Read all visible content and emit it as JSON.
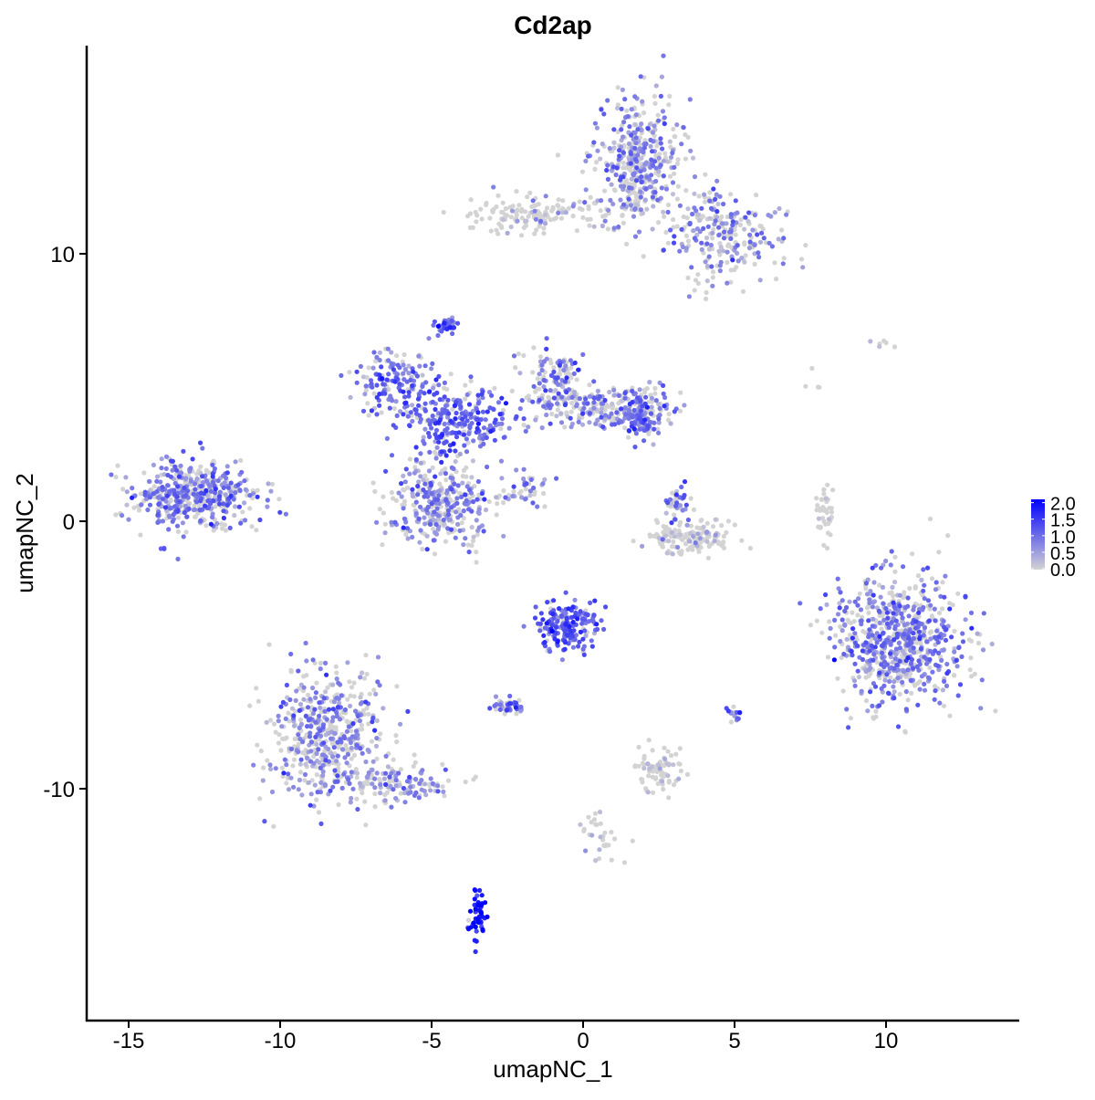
{
  "chart_data": {
    "type": "scatter",
    "title": "Cd2ap",
    "xlabel": "umapNC_1",
    "ylabel": "umapNC_2",
    "xlim": [
      -16.4,
      14.4
    ],
    "ylim": [
      -18.7,
      17.8
    ],
    "x_ticks": [
      -15,
      -10,
      -5,
      0,
      5,
      10
    ],
    "y_ticks": [
      -10,
      0,
      10
    ],
    "grid": false,
    "legend": {
      "placement": "right",
      "type": "colorbar",
      "ticks": [
        "0.0",
        "0.5",
        "1.0",
        "1.5",
        "2.0"
      ],
      "range": [
        0,
        2.1
      ]
    },
    "colors": {
      "low": "#D3D3D3",
      "high": "#0000FF"
    },
    "clusters": [
      {
        "center": [
          -12.8,
          1.0
        ],
        "sd": [
          1.0,
          0.6
        ],
        "n": 500,
        "mean_expression": 0.7
      },
      {
        "center": [
          1.8,
          13.5
        ],
        "sd": [
          0.7,
          1.2
        ],
        "n": 400,
        "mean_expression": 0.6
      },
      {
        "center": [
          4.5,
          10.7
        ],
        "sd": [
          1.0,
          0.9
        ],
        "n": 250,
        "mean_expression": 0.6
      },
      {
        "center": [
          -1.5,
          11.5
        ],
        "sd": [
          1.3,
          0.35
        ],
        "n": 150,
        "mean_expression": 0.2
      },
      {
        "center": [
          -6.2,
          5.2
        ],
        "sd": [
          0.7,
          0.6
        ],
        "n": 150,
        "mean_expression": 0.9
      },
      {
        "center": [
          -4.0,
          3.8
        ],
        "sd": [
          1.0,
          0.6
        ],
        "n": 250,
        "mean_expression": 1.0
      },
      {
        "center": [
          -4.7,
          0.7
        ],
        "sd": [
          0.8,
          0.8
        ],
        "n": 350,
        "mean_expression": 0.6
      },
      {
        "center": [
          -1.0,
          5.3
        ],
        "sd": [
          0.5,
          0.6
        ],
        "n": 120,
        "mean_expression": 0.7
      },
      {
        "center": [
          0.6,
          4.2
        ],
        "sd": [
          1.0,
          0.4
        ],
        "n": 200,
        "mean_expression": 0.6
      },
      {
        "center": [
          2.0,
          4.0
        ],
        "sd": [
          0.45,
          0.45
        ],
        "n": 120,
        "mean_expression": 0.9
      },
      {
        "center": [
          -4.5,
          7.3
        ],
        "sd": [
          0.15,
          0.15
        ],
        "n": 40,
        "mean_expression": 1.0
      },
      {
        "center": [
          -1.9,
          1.2
        ],
        "sd": [
          0.4,
          0.3
        ],
        "n": 40,
        "mean_expression": 0.6
      },
      {
        "center": [
          3.4,
          -0.6
        ],
        "sd": [
          0.7,
          0.3
        ],
        "n": 150,
        "mean_expression": 0.2
      },
      {
        "center": [
          3.1,
          0.6
        ],
        "sd": [
          0.25,
          0.4
        ],
        "n": 40,
        "mean_expression": 0.7
      },
      {
        "center": [
          8.0,
          0.3
        ],
        "sd": [
          0.15,
          0.5
        ],
        "n": 40,
        "mean_expression": 0.05
      },
      {
        "center": [
          10.5,
          -4.5
        ],
        "sd": [
          1.1,
          1.2
        ],
        "n": 700,
        "mean_expression": 0.7
      },
      {
        "center": [
          -8.5,
          -8.0
        ],
        "sd": [
          0.9,
          1.2
        ],
        "n": 500,
        "mean_expression": 0.6
      },
      {
        "center": [
          -6.0,
          -9.8
        ],
        "sd": [
          1.0,
          0.4
        ],
        "n": 120,
        "mean_expression": 0.5
      },
      {
        "center": [
          -0.5,
          -3.9
        ],
        "sd": [
          0.5,
          0.5
        ],
        "n": 180,
        "mean_expression": 1.0
      },
      {
        "center": [
          -2.6,
          -6.9
        ],
        "sd": [
          0.3,
          0.15
        ],
        "n": 40,
        "mean_expression": 0.8
      },
      {
        "center": [
          2.4,
          -9.3
        ],
        "sd": [
          0.4,
          0.4
        ],
        "n": 80,
        "mean_expression": 0.2
      },
      {
        "center": [
          -3.5,
          -14.6
        ],
        "sd": [
          0.15,
          0.45
        ],
        "n": 50,
        "mean_expression": 1.8
      },
      {
        "center": [
          0.5,
          -11.7
        ],
        "sd": [
          0.4,
          0.6
        ],
        "n": 30,
        "mean_expression": 0.3
      },
      {
        "center": [
          5.0,
          -7.2
        ],
        "sd": [
          0.1,
          0.2
        ],
        "n": 15,
        "mean_expression": 0.8
      },
      {
        "center": [
          9.7,
          6.7
        ],
        "sd": [
          0.3,
          0.1
        ],
        "n": 6,
        "mean_expression": 0.2
      },
      {
        "center": [
          7.6,
          5.0
        ],
        "sd": [
          0.2,
          0.3
        ],
        "n": 4,
        "mean_expression": 0.1
      }
    ]
  }
}
